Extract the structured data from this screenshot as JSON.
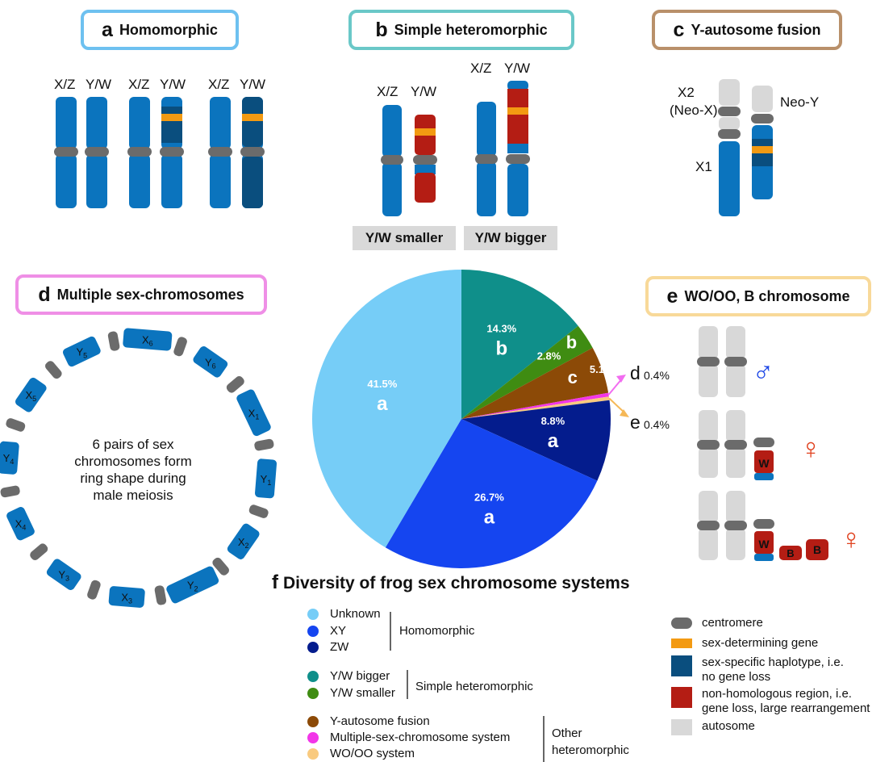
{
  "colors": {
    "blue": "#0b74be",
    "dark": "#0a4e7e",
    "orange": "#f39a12",
    "red": "#b41d14",
    "centromere": "#6b6b6b",
    "autosome": "#d8d8d8",
    "unknown": "#76cdf7",
    "xy": "#1545f0",
    "zw": "#041c8d",
    "ywbig": "#0f8f8a",
    "ywsmall": "#3f8c12",
    "yfusion": "#8c4a07",
    "multi": "#f236e8",
    "wo": "#f9ca7f",
    "male": "#1b46e6",
    "female": "#e0411e"
  },
  "panel_a": {
    "letter": "a",
    "title": "Homomorphic",
    "pair_labels": [
      "X/Z",
      "Y/W",
      "X/Z",
      "Y/W",
      "X/Z",
      "Y/W"
    ]
  },
  "panel_b": {
    "letter": "b",
    "title": "Simple heteromorphic",
    "left_labels": [
      "X/Z",
      "Y/W"
    ],
    "right_labels": [
      "X/Z",
      "Y/W"
    ],
    "tag_small": "Y/W smaller",
    "tag_big": "Y/W bigger"
  },
  "panel_c": {
    "letter": "c",
    "title": "Y-autosome fusion",
    "x2": "X2",
    "neox": "(Neo-X)",
    "neoy": "Neo-Y",
    "x1": "X1"
  },
  "panel_d": {
    "letter": "d",
    "title": "Multiple sex-chromosomes",
    "center_lines": [
      "6 pairs of sex",
      "chromosomes form",
      "ring shape during",
      "male meiosis"
    ],
    "ring_labels": [
      {
        "t": "X",
        "s": "6"
      },
      {
        "t": "Y",
        "s": "6"
      },
      {
        "t": "X",
        "s": "1"
      },
      {
        "t": "Y",
        "s": "1"
      },
      {
        "t": "X",
        "s": "2"
      },
      {
        "t": "Y",
        "s": "2"
      },
      {
        "t": "X",
        "s": "3"
      },
      {
        "t": "Y",
        "s": "3"
      },
      {
        "t": "X",
        "s": "4"
      },
      {
        "t": "Y",
        "s": "4"
      },
      {
        "t": "X",
        "s": "5"
      },
      {
        "t": "Y",
        "s": "5"
      }
    ]
  },
  "panel_e": {
    "letter": "e",
    "title": "WO/OO, B chromosome",
    "male_symbol": "♂",
    "female_symbol": "♀",
    "w": "W",
    "b": "B"
  },
  "panel_f": {
    "letter": "f",
    "title": "Diversity of frog sex chromosome systems"
  },
  "chart_data": {
    "type": "pie",
    "title": "Diversity of frog sex chromosome systems",
    "slices": [
      {
        "name": "Y/W bigger",
        "value": 14.3,
        "label": "14.3%",
        "letter": "b",
        "color": "#0f8f8a"
      },
      {
        "name": "Y/W smaller",
        "value": 2.8,
        "label": "2.8%",
        "letter": "b",
        "color": "#3f8c12"
      },
      {
        "name": "Y-autosome fusion",
        "value": 5.1,
        "label": "5.1%",
        "letter": "c",
        "color": "#8c4a07"
      },
      {
        "name": "Multiple-sex-chromosome system",
        "value": 0.4,
        "label": "0.4%",
        "letter": "d",
        "color": "#f236e8"
      },
      {
        "name": "WO/OO system",
        "value": 0.4,
        "label": "0.4%",
        "letter": "e",
        "color": "#f9ca7f"
      },
      {
        "name": "ZW",
        "value": 8.8,
        "label": "8.8%",
        "letter": "a",
        "color": "#041c8d"
      },
      {
        "name": "XY",
        "value": 26.7,
        "label": "26.7%",
        "letter": "a",
        "color": "#1545f0"
      },
      {
        "name": "Unknown",
        "value": 41.5,
        "label": "41.5%",
        "letter": "a",
        "color": "#76cdf7"
      }
    ]
  },
  "legend": {
    "groups": [
      {
        "name": "Homomorphic",
        "items": [
          {
            "label": "Unknown",
            "color": "#76cdf7"
          },
          {
            "label": "XY",
            "color": "#1545f0"
          },
          {
            "label": "ZW",
            "color": "#041c8d"
          }
        ]
      },
      {
        "name": "Simple heteromorphic",
        "items": [
          {
            "label": "Y/W bigger",
            "color": "#0f8f8a"
          },
          {
            "label": "Y/W smaller",
            "color": "#3f8c12"
          }
        ]
      },
      {
        "name": "Other heteromorphic",
        "name_lines": [
          "Other",
          "heteromorphic"
        ],
        "items": [
          {
            "label": "Y-autosome fusion",
            "color": "#8c4a07"
          },
          {
            "label": "Multiple-sex-chromosome system",
            "color": "#f236e8"
          },
          {
            "label": "WO/OO system",
            "color": "#f9ca7f"
          }
        ]
      }
    ]
  },
  "key": {
    "centromere": "centromere",
    "sdg": "sex-determining gene",
    "haplo_lines": [
      "sex-specific haplotype, i.e.",
      "no gene loss"
    ],
    "nonhom_lines": [
      "non-homologous region, i.e.",
      "gene loss, large rearrangement"
    ],
    "autosome": "autosome"
  }
}
